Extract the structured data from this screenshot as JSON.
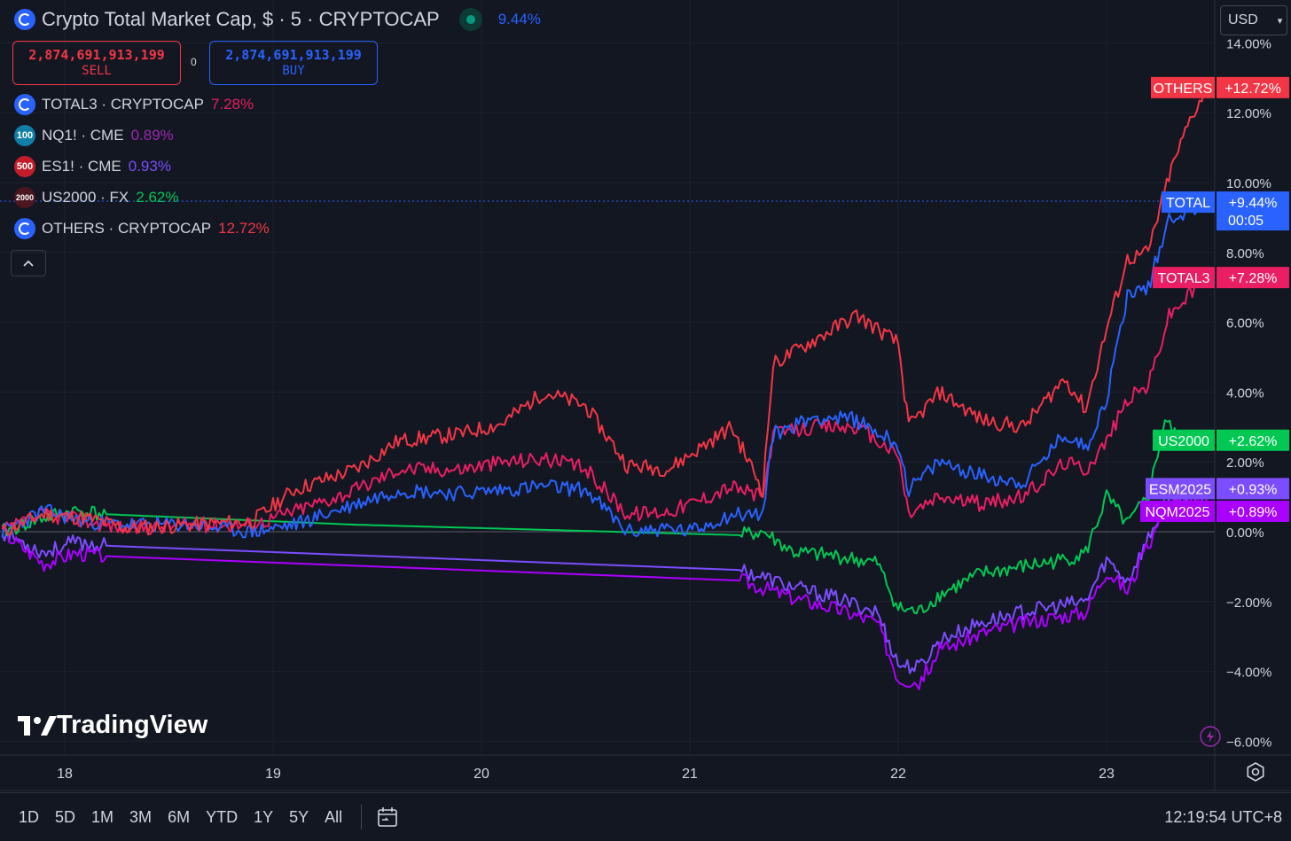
{
  "header": {
    "title": "Crypto Total Market Cap, $ · 5 · CRYPTOCAP",
    "change_pct": "9.44%",
    "sell_value": "2,874,691,913,199",
    "sell_label": "SELL",
    "buy_value": "2,874,691,913,199",
    "buy_label": "BUY",
    "spread": "0"
  },
  "legend": [
    {
      "label": "TOTAL3 · CRYPTOCAP",
      "pct": "7.28%",
      "icon": "crypto",
      "color": "#e91e63"
    },
    {
      "label": "NQ1! · CME",
      "pct": "0.89%",
      "icon": "100",
      "color": "#9c27b0"
    },
    {
      "label": "ES1! · CME",
      "pct": "0.93%",
      "icon": "500",
      "color": "#7b1fa2"
    },
    {
      "label": "US2000 · FX",
      "pct": "2.62%",
      "icon": "2000",
      "color": "#00c853"
    },
    {
      "label": "OTHERS · CRYPTOCAP",
      "pct": "12.72%",
      "icon": "crypto",
      "color": "#f23645"
    }
  ],
  "currency": "USD",
  "branding": "TradingView",
  "bottom_bar": {
    "ranges": [
      "1D",
      "5D",
      "1M",
      "3M",
      "6M",
      "YTD",
      "1Y",
      "5Y",
      "All"
    ],
    "clock": "12:19:54 UTC+8"
  },
  "chart_data": {
    "type": "line",
    "y_unit": "%",
    "ylim": [
      -6.5,
      15
    ],
    "y_ticks": [
      "14.00%",
      "12.00%",
      "10.00%",
      "8.00%",
      "6.00%",
      "4.00%",
      "2.00%",
      "0.00%",
      "−2.00%",
      "−4.00%",
      "−6.00%"
    ],
    "x_ticks": [
      "18",
      "19",
      "20",
      "21",
      "22",
      "23"
    ],
    "x_range": [
      17.7,
      23.51
    ],
    "grid": true,
    "series": [
      {
        "name": "OTHERS",
        "color": "#f23645",
        "end_label": "+12.72%",
        "x": [
          17.7,
          17.9,
          18.1,
          18.3,
          18.6,
          18.9,
          19.1,
          19.4,
          19.6,
          19.9,
          20.1,
          20.3,
          20.5,
          20.7,
          20.9,
          21.0,
          21.2,
          21.35,
          21.4,
          21.6,
          21.8,
          22.0,
          22.05,
          22.2,
          22.4,
          22.6,
          22.8,
          22.9,
          23.0,
          23.1,
          23.2,
          23.3,
          23.4,
          23.48
        ],
        "y": [
          0.0,
          0.5,
          0.4,
          0.1,
          0.2,
          0.3,
          1.2,
          1.8,
          2.6,
          2.8,
          3.1,
          4.0,
          3.6,
          1.9,
          1.8,
          2.2,
          3.0,
          1.2,
          4.8,
          5.5,
          6.2,
          5.4,
          3.0,
          4.0,
          3.2,
          3.0,
          4.4,
          3.5,
          5.8,
          7.8,
          8.0,
          10.2,
          11.8,
          12.72
        ]
      },
      {
        "name": "TOTAL",
        "color": "#2962ff",
        "end_label": "+9.44%",
        "time_label": "00:05",
        "x": [
          17.7,
          17.9,
          18.1,
          18.3,
          18.6,
          18.9,
          19.1,
          19.4,
          19.6,
          19.9,
          20.1,
          20.3,
          20.5,
          20.7,
          20.9,
          21.0,
          21.2,
          21.35,
          21.4,
          21.6,
          21.8,
          22.0,
          22.05,
          22.2,
          22.4,
          22.6,
          22.8,
          22.9,
          23.0,
          23.1,
          23.2,
          23.3,
          23.4,
          23.48
        ],
        "y": [
          0.0,
          0.6,
          0.3,
          0.2,
          0.2,
          0.0,
          0.2,
          0.8,
          1.2,
          1.1,
          1.2,
          1.3,
          1.2,
          0.0,
          0.1,
          0.0,
          0.5,
          0.5,
          2.8,
          3.3,
          3.2,
          2.5,
          1.2,
          2.0,
          1.6,
          1.4,
          2.8,
          2.4,
          3.8,
          6.8,
          7.0,
          9.0,
          9.2,
          9.44
        ]
      },
      {
        "name": "TOTAL3",
        "color": "#e91e63",
        "end_label": "+7.28%",
        "x": [
          17.7,
          17.9,
          18.1,
          18.3,
          18.6,
          18.9,
          19.1,
          19.4,
          19.6,
          19.9,
          20.1,
          20.3,
          20.5,
          20.7,
          20.9,
          21.0,
          21.2,
          21.35,
          21.4,
          21.6,
          21.8,
          22.0,
          22.05,
          22.2,
          22.4,
          22.6,
          22.8,
          22.9,
          23.0,
          23.1,
          23.2,
          23.3,
          23.4,
          23.48
        ],
        "y": [
          0.0,
          0.5,
          0.3,
          0.1,
          0.2,
          0.2,
          0.6,
          1.2,
          1.8,
          1.8,
          2.0,
          2.1,
          1.8,
          0.5,
          0.6,
          0.8,
          1.3,
          1.0,
          2.8,
          3.0,
          3.0,
          2.2,
          0.5,
          1.0,
          0.8,
          1.0,
          2.0,
          1.8,
          2.6,
          3.8,
          4.2,
          6.2,
          6.8,
          7.28
        ]
      },
      {
        "name": "US2000",
        "color": "#00c853",
        "end_label": "+2.62%",
        "x": [
          17.7,
          17.9,
          18.05,
          18.2,
          19.4,
          21.25,
          21.35,
          21.5,
          21.7,
          21.9,
          22.0,
          22.1,
          22.2,
          22.4,
          22.6,
          22.8,
          22.9,
          23.0,
          23.1,
          23.2,
          23.28,
          23.35,
          23.48
        ],
        "y": [
          0.0,
          0.4,
          0.6,
          0.5,
          0.2,
          -0.1,
          0.0,
          -0.6,
          -0.7,
          -0.9,
          -2.2,
          -2.3,
          -1.8,
          -1.2,
          -1.0,
          -0.8,
          -0.6,
          1.0,
          0.2,
          1.0,
          3.2,
          2.6,
          2.62
        ]
      },
      {
        "name": "ESM2025",
        "color": "#7c4dff",
        "end_label": "+0.93%",
        "x": [
          17.7,
          17.9,
          18.05,
          18.2,
          21.25,
          21.35,
          21.5,
          21.7,
          21.9,
          22.0,
          22.1,
          22.2,
          22.4,
          22.6,
          22.8,
          22.9,
          23.0,
          23.1,
          23.2,
          23.28,
          23.35,
          23.48
        ],
        "y": [
          0.0,
          -0.6,
          -0.3,
          -0.4,
          -1.1,
          -1.3,
          -1.6,
          -1.9,
          -2.3,
          -3.8,
          -3.9,
          -3.1,
          -2.6,
          -2.3,
          -2.1,
          -2.0,
          -0.8,
          -1.4,
          -0.2,
          0.8,
          0.9,
          0.93
        ]
      },
      {
        "name": "NQM2025",
        "color": "#aa00ff",
        "end_label": "+0.89%",
        "x": [
          17.7,
          17.9,
          18.05,
          18.2,
          21.25,
          21.35,
          21.5,
          21.7,
          21.9,
          22.0,
          22.1,
          22.2,
          22.4,
          22.6,
          22.8,
          22.9,
          23.0,
          23.1,
          23.2,
          23.28,
          23.35,
          23.48
        ],
        "y": [
          0.0,
          -0.9,
          -0.6,
          -0.7,
          -1.4,
          -1.6,
          -1.9,
          -2.2,
          -2.6,
          -4.2,
          -4.3,
          -3.4,
          -2.9,
          -2.6,
          -2.4,
          -2.3,
          -1.1,
          -1.7,
          -0.4,
          0.7,
          0.86,
          0.89
        ]
      }
    ]
  }
}
